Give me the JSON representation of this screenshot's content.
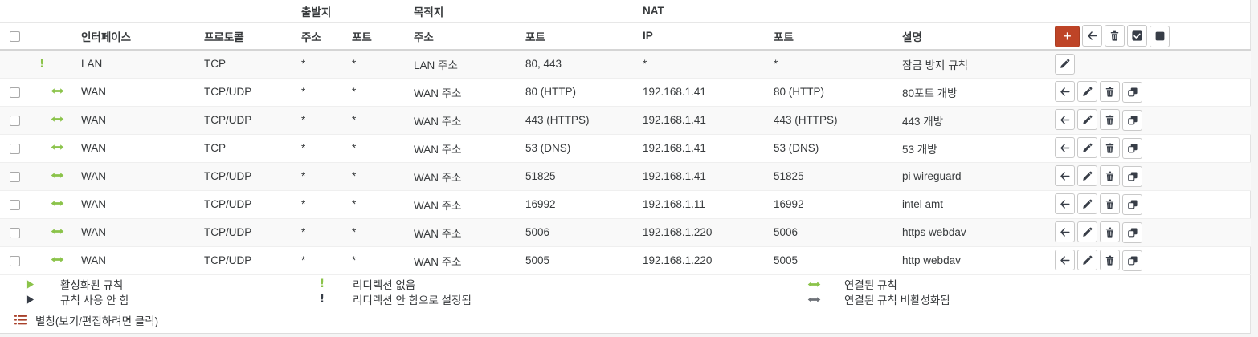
{
  "colors": {
    "accent_red": "#be4427",
    "icon_green": "#8bc34a",
    "icon_dark": "#373d47",
    "icon_gray": "#6d7177",
    "alias_red": "#a8402a"
  },
  "group_headers": {
    "source": "출발지",
    "destination": "목적지",
    "nat": "NAT"
  },
  "columns": {
    "interface": "인터페이스",
    "protocol": "프로토콜",
    "src_address": "주소",
    "src_port": "포트",
    "dst_address": "주소",
    "dst_port": "포트",
    "nat_ip": "IP",
    "nat_port": "포트",
    "description": "설명"
  },
  "toolbar": {
    "buttons": [
      {
        "name": "add-rule-button",
        "icon": "plus-icon",
        "style": "danger"
      },
      {
        "name": "move-selected-button",
        "icon": "arrow-left-icon",
        "style": "default"
      },
      {
        "name": "delete-selected-button",
        "icon": "trash-icon",
        "style": "default"
      },
      {
        "name": "toggle-selected-button",
        "icon": "check-square-icon",
        "style": "default"
      },
      {
        "name": "select-all-button",
        "icon": "square-icon",
        "style": "default"
      }
    ]
  },
  "rows": [
    {
      "selectable": false,
      "status_icon": "exclamation-icon",
      "status_color": "green",
      "interface": "LAN",
      "protocol": "TCP",
      "src_address": "*",
      "src_port": "*",
      "dst_address": "LAN 주소",
      "dst_port": "80, 443",
      "nat_ip": "*",
      "nat_port": "*",
      "description": "잠금 방지 규칙",
      "actions": [
        {
          "name": "edit-rule-button",
          "icon": "pencil-icon"
        }
      ]
    },
    {
      "selectable": true,
      "status_icon": "arrows-h-icon",
      "status_color": "green",
      "interface": "WAN",
      "protocol": "TCP/UDP",
      "src_address": "*",
      "src_port": "*",
      "dst_address": "WAN 주소",
      "dst_port": "80 (HTTP)",
      "nat_ip": "192.168.1.41",
      "nat_port": "80 (HTTP)",
      "description": "80포트 개방",
      "actions": [
        {
          "name": "move-rule-button",
          "icon": "arrow-left-icon"
        },
        {
          "name": "edit-rule-button",
          "icon": "pencil-icon"
        },
        {
          "name": "delete-rule-button",
          "icon": "trash-icon"
        },
        {
          "name": "copy-rule-button",
          "icon": "copy-icon"
        }
      ]
    },
    {
      "selectable": true,
      "status_icon": "arrows-h-icon",
      "status_color": "green",
      "interface": "WAN",
      "protocol": "TCP/UDP",
      "src_address": "*",
      "src_port": "*",
      "dst_address": "WAN 주소",
      "dst_port": "443 (HTTPS)",
      "nat_ip": "192.168.1.41",
      "nat_port": "443 (HTTPS)",
      "description": "443 개방",
      "actions": [
        {
          "name": "move-rule-button",
          "icon": "arrow-left-icon"
        },
        {
          "name": "edit-rule-button",
          "icon": "pencil-icon"
        },
        {
          "name": "delete-rule-button",
          "icon": "trash-icon"
        },
        {
          "name": "copy-rule-button",
          "icon": "copy-icon"
        }
      ]
    },
    {
      "selectable": true,
      "status_icon": "arrows-h-icon",
      "status_color": "green",
      "interface": "WAN",
      "protocol": "TCP",
      "src_address": "*",
      "src_port": "*",
      "dst_address": "WAN 주소",
      "dst_port": "53 (DNS)",
      "nat_ip": "192.168.1.41",
      "nat_port": "53 (DNS)",
      "description": "53 개방",
      "actions": [
        {
          "name": "move-rule-button",
          "icon": "arrow-left-icon"
        },
        {
          "name": "edit-rule-button",
          "icon": "pencil-icon"
        },
        {
          "name": "delete-rule-button",
          "icon": "trash-icon"
        },
        {
          "name": "copy-rule-button",
          "icon": "copy-icon"
        }
      ]
    },
    {
      "selectable": true,
      "status_icon": "arrows-h-icon",
      "status_color": "green",
      "interface": "WAN",
      "protocol": "TCP/UDP",
      "src_address": "*",
      "src_port": "*",
      "dst_address": "WAN 주소",
      "dst_port": "51825",
      "nat_ip": "192.168.1.41",
      "nat_port": "51825",
      "description": "pi wireguard",
      "actions": [
        {
          "name": "move-rule-button",
          "icon": "arrow-left-icon"
        },
        {
          "name": "edit-rule-button",
          "icon": "pencil-icon"
        },
        {
          "name": "delete-rule-button",
          "icon": "trash-icon"
        },
        {
          "name": "copy-rule-button",
          "icon": "copy-icon"
        }
      ]
    },
    {
      "selectable": true,
      "status_icon": "arrows-h-icon",
      "status_color": "green",
      "interface": "WAN",
      "protocol": "TCP/UDP",
      "src_address": "*",
      "src_port": "*",
      "dst_address": "WAN 주소",
      "dst_port": "16992",
      "nat_ip": "192.168.1.11",
      "nat_port": "16992",
      "description": "intel amt",
      "actions": [
        {
          "name": "move-rule-button",
          "icon": "arrow-left-icon"
        },
        {
          "name": "edit-rule-button",
          "icon": "pencil-icon"
        },
        {
          "name": "delete-rule-button",
          "icon": "trash-icon"
        },
        {
          "name": "copy-rule-button",
          "icon": "copy-icon"
        }
      ]
    },
    {
      "selectable": true,
      "status_icon": "arrows-h-icon",
      "status_color": "green",
      "interface": "WAN",
      "protocol": "TCP/UDP",
      "src_address": "*",
      "src_port": "*",
      "dst_address": "WAN 주소",
      "dst_port": "5006",
      "nat_ip": "192.168.1.220",
      "nat_port": "5006",
      "description": "https webdav",
      "actions": [
        {
          "name": "move-rule-button",
          "icon": "arrow-left-icon"
        },
        {
          "name": "edit-rule-button",
          "icon": "pencil-icon"
        },
        {
          "name": "delete-rule-button",
          "icon": "trash-icon"
        },
        {
          "name": "copy-rule-button",
          "icon": "copy-icon"
        }
      ]
    },
    {
      "selectable": true,
      "status_icon": "arrows-h-icon",
      "status_color": "green",
      "interface": "WAN",
      "protocol": "TCP/UDP",
      "src_address": "*",
      "src_port": "*",
      "dst_address": "WAN 주소",
      "dst_port": "5005",
      "nat_ip": "192.168.1.220",
      "nat_port": "5005",
      "description": "http webdav",
      "actions": [
        {
          "name": "move-rule-button",
          "icon": "arrow-left-icon"
        },
        {
          "name": "edit-rule-button",
          "icon": "pencil-icon"
        },
        {
          "name": "delete-rule-button",
          "icon": "trash-icon"
        },
        {
          "name": "copy-rule-button",
          "icon": "copy-icon"
        }
      ]
    }
  ],
  "legend": {
    "col1": [
      {
        "icon": "play-icon",
        "color": "green",
        "label": "활성화된 규칙"
      },
      {
        "icon": "play-icon",
        "color": "dark",
        "label": "규칙 사용 안 함"
      }
    ],
    "col2": [
      {
        "icon": "exclamation-icon",
        "color": "green",
        "label": "리디렉션 없음"
      },
      {
        "icon": "exclamation-icon",
        "color": "dark",
        "label": "리디렉션 안 함으로 설정됨"
      }
    ],
    "col3": [
      {
        "icon": "arrows-h-icon",
        "color": "green",
        "label": "연결된 규칙"
      },
      {
        "icon": "arrows-h-icon",
        "color": "gray",
        "label": "연결된 규칙 비활성화됨"
      }
    ]
  },
  "footer": {
    "icon": "list-icon",
    "label": "별칭(보기/편집하려면 클릭)"
  }
}
